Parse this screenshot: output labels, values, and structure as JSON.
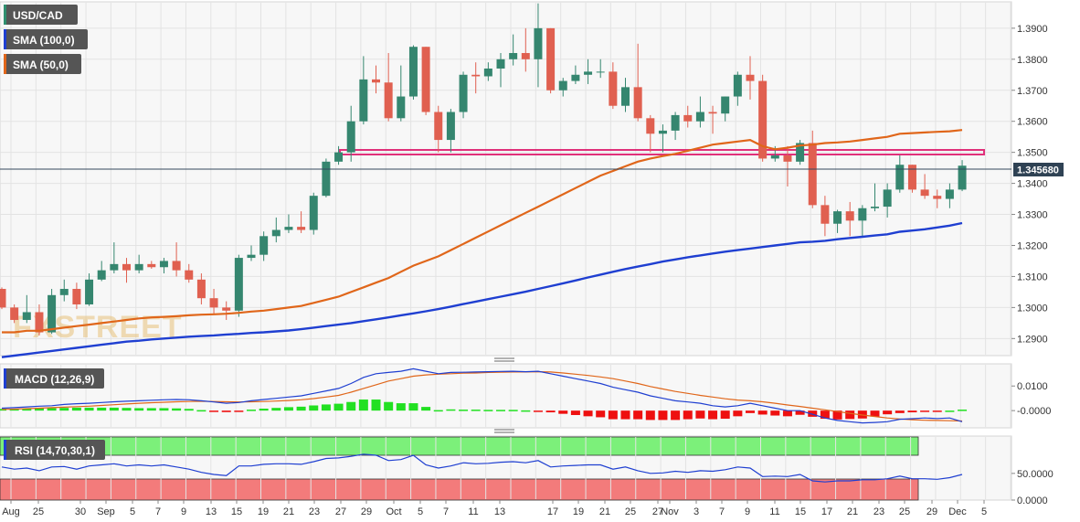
{
  "chart_data": [
    {
      "type": "candlestick",
      "symbol": "USD/CAD",
      "indicators": [
        {
          "name": "SMA (100,0)",
          "color": "#1f3fd1"
        },
        {
          "name": "SMA (50,0)",
          "color": "#e0661a"
        }
      ],
      "y_ticks": [
        "1.3900",
        "1.3800",
        "1.3700",
        "1.3600",
        "1.3500",
        "1.3400",
        "1.3300",
        "1.3200",
        "1.3100",
        "1.3000",
        "1.2900"
      ],
      "ylim": [
        1.2845,
        1.3985
      ],
      "current_price": "1.345680",
      "watermark": "FXSTREET",
      "resistance_zone": [
        1.3502,
        1.3518
      ],
      "candles": [
        [
          1.306,
          1.3,
          1.3065,
          1.2995
        ],
        [
          1.3,
          1.296,
          1.301,
          1.295
        ],
        [
          1.296,
          1.2985,
          1.304,
          1.295
        ],
        [
          1.2985,
          1.292,
          1.301,
          1.291
        ],
        [
          1.292,
          1.304,
          1.306,
          1.2915
        ],
        [
          1.304,
          1.306,
          1.309,
          1.302
        ],
        [
          1.306,
          1.301,
          1.308,
          1.2995
        ],
        [
          1.301,
          1.309,
          1.311,
          1.3005
        ],
        [
          1.309,
          1.312,
          1.315,
          1.3085
        ],
        [
          1.312,
          1.314,
          1.321,
          1.311
        ],
        [
          1.314,
          1.312,
          1.316,
          1.308
        ],
        [
          1.312,
          1.314,
          1.317,
          1.311
        ],
        [
          1.314,
          1.313,
          1.315,
          1.3125
        ],
        [
          1.313,
          1.315,
          1.316,
          1.311
        ],
        [
          1.315,
          1.312,
          1.321,
          1.31
        ],
        [
          1.312,
          1.309,
          1.314,
          1.308
        ],
        [
          1.309,
          1.303,
          1.311,
          1.301
        ],
        [
          1.303,
          1.3,
          1.306,
          1.298
        ],
        [
          1.3,
          1.299,
          1.302,
          1.296
        ],
        [
          1.299,
          1.316,
          1.317,
          1.297
        ],
        [
          1.316,
          1.317,
          1.32,
          1.315
        ],
        [
          1.317,
          1.323,
          1.3245,
          1.315
        ],
        [
          1.323,
          1.325,
          1.329,
          1.321
        ],
        [
          1.325,
          1.326,
          1.33,
          1.324
        ],
        [
          1.326,
          1.325,
          1.331,
          1.324
        ],
        [
          1.325,
          1.336,
          1.337,
          1.3235
        ],
        [
          1.336,
          1.347,
          1.348,
          1.3355
        ],
        [
          1.347,
          1.35,
          1.352,
          1.346
        ],
        [
          1.35,
          1.36,
          1.365,
          1.347
        ],
        [
          1.36,
          1.3735,
          1.381,
          1.359
        ],
        [
          1.3735,
          1.3725,
          1.378,
          1.369
        ],
        [
          1.3725,
          1.361,
          1.382,
          1.36
        ],
        [
          1.361,
          1.368,
          1.378,
          1.36
        ],
        [
          1.368,
          1.384,
          1.3845,
          1.367
        ],
        [
          1.384,
          1.363,
          1.384,
          1.362
        ],
        [
          1.363,
          1.354,
          1.365,
          1.35
        ],
        [
          1.354,
          1.363,
          1.364,
          1.35
        ],
        [
          1.363,
          1.375,
          1.376,
          1.361
        ],
        [
          1.375,
          1.3745,
          1.379,
          1.369
        ],
        [
          1.3745,
          1.377,
          1.379,
          1.373
        ],
        [
          1.377,
          1.38,
          1.382,
          1.371
        ],
        [
          1.38,
          1.382,
          1.388,
          1.378
        ],
        [
          1.382,
          1.38,
          1.39,
          1.376
        ],
        [
          1.38,
          1.39,
          1.398,
          1.371
        ],
        [
          1.39,
          1.37,
          1.39,
          1.369
        ],
        [
          1.37,
          1.373,
          1.374,
          1.368
        ],
        [
          1.373,
          1.375,
          1.378,
          1.372
        ],
        [
          1.375,
          1.376,
          1.38,
          1.372
        ],
        [
          1.376,
          1.376,
          1.38,
          1.374
        ],
        [
          1.376,
          1.365,
          1.379,
          1.364
        ],
        [
          1.365,
          1.371,
          1.374,
          1.363
        ],
        [
          1.371,
          1.361,
          1.385,
          1.36
        ],
        [
          1.361,
          1.356,
          1.362,
          1.35
        ],
        [
          1.356,
          1.357,
          1.359,
          1.35
        ],
        [
          1.357,
          1.362,
          1.363,
          1.354
        ],
        [
          1.362,
          1.36,
          1.365,
          1.358
        ],
        [
          1.36,
          1.363,
          1.368,
          1.358
        ],
        [
          1.363,
          1.3625,
          1.365,
          1.356
        ],
        [
          1.3625,
          1.368,
          1.368,
          1.36
        ],
        [
          1.368,
          1.375,
          1.376,
          1.365
        ],
        [
          1.375,
          1.373,
          1.381,
          1.367
        ],
        [
          1.373,
          1.348,
          1.375,
          1.347
        ],
        [
          1.348,
          1.349,
          1.352,
          1.347
        ],
        [
          1.349,
          1.347,
          1.352,
          1.339
        ],
        [
          1.347,
          1.353,
          1.354,
          1.346
        ],
        [
          1.353,
          1.333,
          1.357,
          1.332
        ],
        [
          1.333,
          1.327,
          1.336,
          1.323
        ],
        [
          1.327,
          1.331,
          1.3315,
          1.324
        ],
        [
          1.331,
          1.328,
          1.334,
          1.323
        ],
        [
          1.328,
          1.332,
          1.333,
          1.323
        ],
        [
          1.332,
          1.3325,
          1.34,
          1.331
        ],
        [
          1.3325,
          1.338,
          1.34,
          1.329
        ],
        [
          1.338,
          1.346,
          1.349,
          1.337
        ],
        [
          1.346,
          1.338,
          1.346,
          1.337
        ],
        [
          1.338,
          1.336,
          1.343,
          1.335
        ],
        [
          1.336,
          1.335,
          1.338,
          1.332
        ],
        [
          1.335,
          1.338,
          1.34,
          1.332
        ],
        [
          1.338,
          1.3457,
          1.3475,
          1.3375
        ]
      ],
      "sma50": [
        1.292,
        1.292,
        1.2925,
        1.2925,
        1.293,
        1.2935,
        1.294,
        1.2945,
        1.295,
        1.2955,
        1.296,
        1.2965,
        1.2968,
        1.297,
        1.2972,
        1.2975,
        1.2977,
        1.2978,
        1.298,
        1.2983,
        1.2987,
        1.299,
        1.2995,
        1.3,
        1.3005,
        1.3015,
        1.3025,
        1.3035,
        1.305,
        1.3065,
        1.308,
        1.3095,
        1.3115,
        1.3135,
        1.315,
        1.3165,
        1.3185,
        1.3205,
        1.3225,
        1.3245,
        1.3265,
        1.3285,
        1.3305,
        1.3325,
        1.3345,
        1.3365,
        1.3385,
        1.3405,
        1.3425,
        1.344,
        1.3455,
        1.347,
        1.348,
        1.3488,
        1.3495,
        1.3505,
        1.3515,
        1.3525,
        1.353,
        1.3535,
        1.354,
        1.352,
        1.351,
        1.3515,
        1.3522,
        1.3525,
        1.353,
        1.3532,
        1.3535,
        1.354,
        1.3545,
        1.355,
        1.356,
        1.3562,
        1.3564,
        1.3566,
        1.3568,
        1.3572
      ],
      "sma100": [
        1.284,
        1.2845,
        1.285,
        1.2855,
        1.286,
        1.2865,
        1.287,
        1.2875,
        1.288,
        1.2885,
        1.289,
        1.2893,
        1.2897,
        1.29,
        1.2903,
        1.2906,
        1.2908,
        1.291,
        1.2913,
        1.2915,
        1.2918,
        1.292,
        1.2923,
        1.2926,
        1.293,
        1.2935,
        1.294,
        1.2945,
        1.295,
        1.2956,
        1.2962,
        1.2968,
        1.2975,
        1.2981,
        1.2988,
        1.2995,
        1.3003,
        1.3011,
        1.3019,
        1.3027,
        1.3035,
        1.3043,
        1.3051,
        1.306,
        1.3069,
        1.3078,
        1.3087,
        1.3097,
        1.3106,
        1.3115,
        1.3124,
        1.3132,
        1.314,
        1.3148,
        1.3155,
        1.3162,
        1.3168,
        1.3174,
        1.318,
        1.3185,
        1.319,
        1.3195,
        1.32,
        1.3205,
        1.321,
        1.3212,
        1.3215,
        1.322,
        1.3224,
        1.3228,
        1.3232,
        1.3236,
        1.3244,
        1.3248,
        1.3252,
        1.3258,
        1.3264,
        1.3272
      ]
    },
    {
      "type": "macd",
      "label": "MACD (12,26,9)",
      "y_ticks": [
        "0.0100",
        "-0.0000"
      ],
      "ylim": [
        -0.007,
        0.019
      ],
      "macd": [
        0.001,
        0.0012,
        0.0015,
        0.0018,
        0.002,
        0.0025,
        0.0028,
        0.003,
        0.0033,
        0.0036,
        0.0038,
        0.004,
        0.0042,
        0.0044,
        0.0045,
        0.0044,
        0.004,
        0.0035,
        0.003,
        0.0033,
        0.004,
        0.0045,
        0.005,
        0.0055,
        0.006,
        0.007,
        0.008,
        0.009,
        0.011,
        0.0135,
        0.015,
        0.0155,
        0.016,
        0.017,
        0.016,
        0.015,
        0.0155,
        0.0156,
        0.0157,
        0.0158,
        0.0159,
        0.016,
        0.0158,
        0.016,
        0.015,
        0.014,
        0.013,
        0.012,
        0.011,
        0.0095,
        0.0085,
        0.0075,
        0.006,
        0.005,
        0.004,
        0.0035,
        0.003,
        0.002,
        0.0015,
        0.002,
        0.003,
        0.002,
        0.001,
        0.0,
        0.0,
        -0.0015,
        -0.003,
        -0.004,
        -0.0045,
        -0.005,
        -0.0048,
        -0.0045,
        -0.0035,
        -0.0033,
        -0.003,
        -0.0032,
        -0.003,
        -0.0045
      ],
      "signal": [
        0.0005,
        0.0006,
        0.0008,
        0.001,
        0.0012,
        0.0014,
        0.0016,
        0.0018,
        0.0021,
        0.0024,
        0.0027,
        0.003,
        0.0032,
        0.0034,
        0.0036,
        0.0037,
        0.0038,
        0.0037,
        0.0036,
        0.0035,
        0.0036,
        0.0037,
        0.0039,
        0.0041,
        0.0044,
        0.0049,
        0.0055,
        0.0062,
        0.0075,
        0.009,
        0.0105,
        0.012,
        0.013,
        0.014,
        0.0145,
        0.0148,
        0.015,
        0.0152,
        0.0153,
        0.0155,
        0.0156,
        0.0157,
        0.0157,
        0.0158,
        0.0157,
        0.0153,
        0.0148,
        0.0143,
        0.0137,
        0.013,
        0.012,
        0.011,
        0.0098,
        0.0088,
        0.0078,
        0.007,
        0.0062,
        0.0055,
        0.0048,
        0.0043,
        0.004,
        0.0036,
        0.003,
        0.0023,
        0.0017,
        0.001,
        0.0003,
        -0.0004,
        -0.0011,
        -0.0018,
        -0.0024,
        -0.003,
        -0.0034,
        -0.0037,
        -0.0039,
        -0.004,
        -0.0041,
        -0.0042
      ],
      "histogram": [
        0.0007,
        0.0008,
        0.0009,
        0.001,
        0.001,
        0.0011,
        0.0012,
        0.0012,
        0.0012,
        0.0012,
        0.0011,
        0.001,
        0.001,
        0.001,
        0.0009,
        0.0007,
        0.0002,
        -0.0002,
        -0.0006,
        -0.0002,
        0.0004,
        0.0008,
        0.0011,
        0.0014,
        0.0016,
        0.0021,
        0.0025,
        0.0028,
        0.0035,
        0.0045,
        0.0045,
        0.0035,
        0.003,
        0.003,
        0.0015,
        0.0002,
        0.0005,
        0.0004,
        0.0004,
        0.0003,
        0.0003,
        0.0003,
        0.0001,
        -0.0002,
        -0.0007,
        -0.0013,
        -0.0018,
        -0.0023,
        -0.0027,
        -0.0035,
        -0.0035,
        -0.0035,
        -0.0038,
        -0.0038,
        -0.0038,
        -0.0035,
        -0.0032,
        -0.0035,
        -0.0033,
        -0.0023,
        -0.001,
        -0.0016,
        -0.002,
        -0.0023,
        -0.0017,
        -0.0025,
        -0.0033,
        -0.0036,
        -0.0034,
        -0.0032,
        -0.0024,
        -0.0015,
        -0.001,
        -0.0007,
        -0.0004,
        -0.0002,
        0.0,
        0.0004
      ]
    },
    {
      "type": "rsi",
      "label": "RSI (14,70,30,1)",
      "y_ticks": [
        "50.0000",
        "0.0000"
      ],
      "ylim": [
        0,
        120
      ],
      "levels": [
        70,
        30
      ],
      "rsi": [
        62,
        58,
        60,
        55,
        62,
        63,
        58,
        64,
        66,
        68,
        64,
        66,
        64,
        66,
        62,
        58,
        52,
        48,
        46,
        64,
        64,
        67,
        68,
        68,
        67,
        72,
        78,
        79,
        82,
        86,
        84,
        74,
        76,
        84,
        66,
        60,
        64,
        70,
        68,
        69,
        71,
        72,
        70,
        74,
        62,
        64,
        65,
        66,
        66,
        58,
        62,
        55,
        50,
        51,
        54,
        52,
        55,
        54,
        57,
        62,
        60,
        44,
        45,
        44,
        48,
        36,
        34,
        36,
        36,
        38,
        38,
        40,
        45,
        40,
        40,
        39,
        42,
        48
      ]
    }
  ],
  "x_axis_labels": [
    "Aug",
    "25",
    "30",
    "Sep",
    "5",
    "7",
    "9",
    "13",
    "15",
    "19",
    "21",
    "23",
    "27",
    "29",
    "Oct",
    "5",
    "7",
    "11",
    "13",
    "17",
    "19",
    "21",
    "25",
    "27",
    "Nov",
    "3",
    "7",
    "9",
    "11",
    "15",
    "17",
    "21",
    "23",
    "25",
    "29",
    "Dec",
    "5"
  ]
}
